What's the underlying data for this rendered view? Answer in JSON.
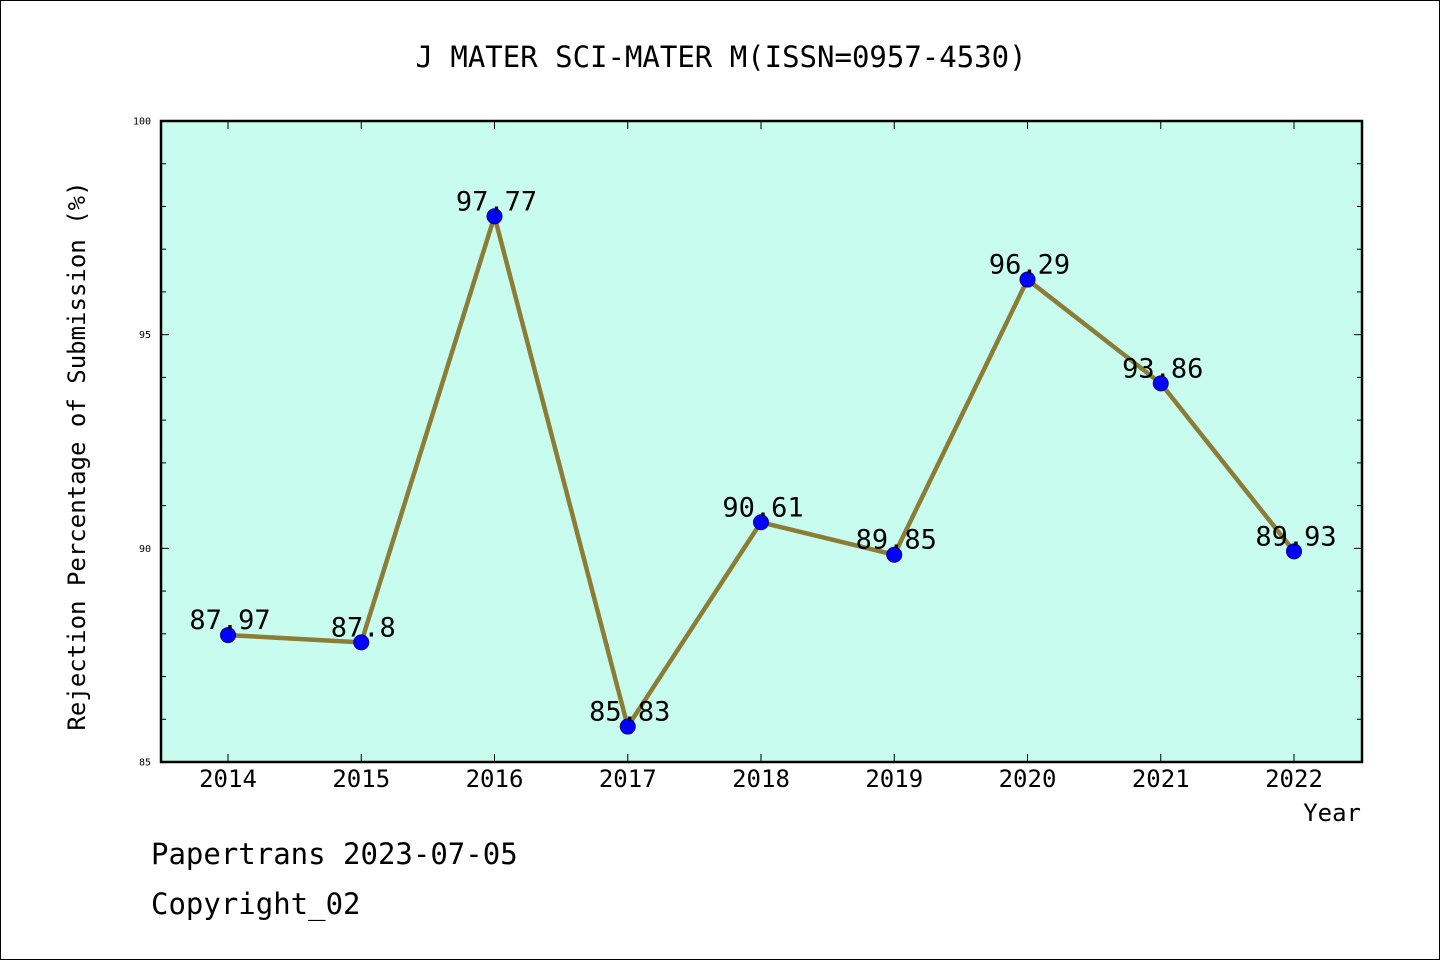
{
  "chart_data": {
    "type": "line",
    "title": "J MATER SCI-MATER M(ISSN=0957-4530)",
    "xlabel": "Year",
    "ylabel": "Rejection Percentage of Submission (%)",
    "categories": [
      "2014",
      "2015",
      "2016",
      "2017",
      "2018",
      "2019",
      "2020",
      "2021",
      "2022"
    ],
    "values": [
      87.97,
      87.8,
      97.77,
      85.83,
      90.61,
      89.85,
      96.29,
      93.86,
      89.93
    ],
    "data_labels": [
      "87.97",
      "87.8",
      "97.77",
      "85.83",
      "90.61",
      "89.85",
      "96.29",
      "93.86",
      "89.93"
    ],
    "ylim": [
      85,
      100
    ],
    "yticks": [
      "85",
      "90",
      "95",
      "100"
    ],
    "grid": false,
    "colors": {
      "plot_background": "#c8fcee",
      "line": "#8b7d35",
      "marker": "#0000ff"
    }
  },
  "footer": {
    "source": "Papertrans 2023-07-05",
    "copyright": "Copyright_02"
  }
}
